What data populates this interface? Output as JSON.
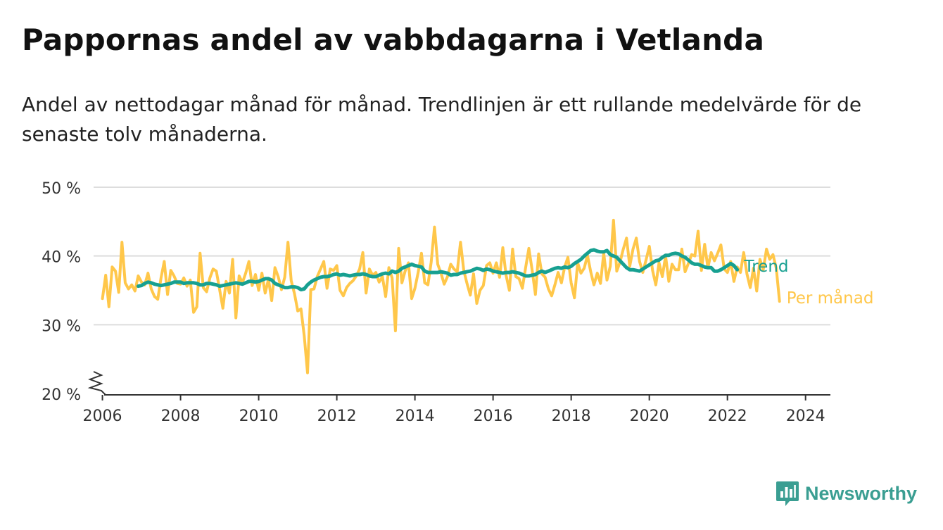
{
  "header": {
    "title": "Pappornas andel av vabbdagarna i Vetlanda",
    "subtitle": "Andel av nettodagar månad för månad. Trendlinjen är ett rullande medelvärde för de senaste tolv månaderna."
  },
  "brand": {
    "name": "Newsworthy",
    "icon": "newsworthy-chart-bubble-icon"
  },
  "colors": {
    "trend": "#17a091",
    "monthly": "#ffc74a",
    "grid": "#dddddd",
    "axis": "#333333",
    "brand": "#3a9e92"
  },
  "chart_data": {
    "type": "line",
    "title": "Pappornas andel av vabbdagarna i Vetlanda",
    "subtitle": "Andel av nettodagar månad för månad. Trendlinjen är ett rullande medelvärde för de senaste tolv månaderna.",
    "xlabel": "",
    "ylabel": "",
    "ylim": [
      20,
      50
    ],
    "yticks": [
      20,
      30,
      40,
      50
    ],
    "ytick_labels": [
      "20 %",
      "30 %",
      "40 %",
      "50 %"
    ],
    "y_axis_break": true,
    "xlim": [
      2005.9,
      2024.6
    ],
    "xticks": [
      2006,
      2008,
      2010,
      2012,
      2014,
      2016,
      2018,
      2020,
      2022,
      2024
    ],
    "xtick_labels": [
      "2006",
      "2008",
      "2010",
      "2012",
      "2014",
      "2016",
      "2018",
      "2020",
      "2022",
      "2024"
    ],
    "grid": "horizontal",
    "legend": "direct labels at line ends (right)",
    "series": [
      {
        "name": "Per månad",
        "color": "#ffc74a",
        "x_start": 2006.0,
        "x_step": 0.0833333,
        "values": [
          33.8,
          37.2,
          32.6,
          38.4,
          37.8,
          34.7,
          42.0,
          36.1,
          35.2,
          35.8,
          34.9,
          37.1,
          36.2,
          35.8,
          37.5,
          35.2,
          34.1,
          33.7,
          36.8,
          39.2,
          34.4,
          37.9,
          37.1,
          36.0,
          35.9,
          36.8,
          35.6,
          36.5,
          31.8,
          32.6,
          40.4,
          35.4,
          34.8,
          36.8,
          38.1,
          37.8,
          35.1,
          32.4,
          36.3,
          34.6,
          39.5,
          31.0,
          37.1,
          36.1,
          37.5,
          39.2,
          35.7,
          37.3,
          35.0,
          37.5,
          34.6,
          36.6,
          33.5,
          38.3,
          37.0,
          35.1,
          36.9,
          42.0,
          36.4,
          34.5,
          32.0,
          32.3,
          28.4,
          23.0,
          35.1,
          35.2,
          37.0,
          38.1,
          39.2,
          35.3,
          38.1,
          37.9,
          38.6,
          35.0,
          34.2,
          35.4,
          36.0,
          36.4,
          37.1,
          38.1,
          40.5,
          34.6,
          38.1,
          37.2,
          37.6,
          36.2,
          37.0,
          34.1,
          38.3,
          36.8,
          29.1,
          41.1,
          36.1,
          37.8,
          39.0,
          33.8,
          35.3,
          37.6,
          40.4,
          36.1,
          35.8,
          39.1,
          44.2,
          38.8,
          37.5,
          35.9,
          37.0,
          38.8,
          38.1,
          37.7,
          42.0,
          37.9,
          36.0,
          34.3,
          37.4,
          33.1,
          35.0,
          35.7,
          38.6,
          39.0,
          37.5,
          39.0,
          36.9,
          41.2,
          37.2,
          35.0,
          41.0,
          37.0,
          36.7,
          35.3,
          38.3,
          41.1,
          38.0,
          34.4,
          40.3,
          37.4,
          36.9,
          35.2,
          34.2,
          35.8,
          37.6,
          36.1,
          38.4,
          39.8,
          36.1,
          33.9,
          39.0,
          37.5,
          38.2,
          40.1,
          37.7,
          35.8,
          37.5,
          36.0,
          40.4,
          36.5,
          38.5,
          45.2,
          37.8,
          39.1,
          41.0,
          42.6,
          38.5,
          41.0,
          42.6,
          39.2,
          37.6,
          39.4,
          41.4,
          37.9,
          35.8,
          39.0,
          37.0,
          40.0,
          36.3,
          38.8,
          38.0,
          38.0,
          41.0,
          37.7,
          38.9,
          40.2,
          40.0,
          43.6,
          37.9,
          41.7,
          38.3,
          40.5,
          39.3,
          40.4,
          41.6,
          38.1,
          37.6,
          39.2,
          36.3,
          38.4,
          37.6,
          40.5,
          37.4,
          35.4,
          38.2,
          34.9,
          39.5,
          38.0,
          41.0,
          39.5,
          40.2,
          38.2,
          33.4
        ]
      },
      {
        "name": "Trend",
        "color": "#17a091",
        "x_start": 2006.9167,
        "x_step": 0.0833333,
        "values": [
          35.6,
          35.7,
          36.0,
          36.2,
          36.1,
          35.9,
          35.8,
          35.7,
          35.8,
          35.9,
          36.0,
          36.2,
          36.2,
          36.2,
          36.0,
          36.1,
          36.1,
          36.1,
          36.0,
          35.8,
          35.8,
          36.0,
          36.0,
          35.9,
          35.8,
          35.6,
          35.7,
          35.8,
          35.9,
          36.0,
          36.1,
          36.0,
          35.9,
          36.1,
          36.3,
          36.3,
          36.2,
          36.3,
          36.5,
          36.7,
          36.7,
          36.5,
          36.0,
          35.8,
          35.6,
          35.4,
          35.4,
          35.5,
          35.5,
          35.4,
          35.1,
          35.2,
          35.8,
          36.2,
          36.5,
          36.7,
          36.9,
          37.0,
          37.0,
          37.1,
          37.3,
          37.4,
          37.2,
          37.3,
          37.2,
          37.1,
          37.2,
          37.3,
          37.3,
          37.4,
          37.3,
          37.1,
          37.0,
          37.0,
          37.2,
          37.4,
          37.5,
          37.4,
          37.8,
          37.6,
          37.8,
          38.2,
          38.4,
          38.6,
          38.8,
          38.6,
          38.5,
          38.4,
          37.8,
          37.6,
          37.6,
          37.6,
          37.6,
          37.7,
          37.6,
          37.5,
          37.2,
          37.3,
          37.3,
          37.5,
          37.6,
          37.7,
          37.8,
          38.0,
          38.2,
          38.1,
          37.9,
          38.1,
          38.0,
          37.8,
          37.7,
          37.6,
          37.5,
          37.6,
          37.6,
          37.7,
          37.6,
          37.5,
          37.3,
          37.1,
          37.1,
          37.2,
          37.3,
          37.6,
          37.8,
          37.6,
          37.8,
          38.0,
          38.2,
          38.3,
          38.2,
          38.4,
          38.3,
          38.5,
          38.9,
          39.2,
          39.5,
          40.0,
          40.4,
          40.8,
          40.9,
          40.7,
          40.6,
          40.6,
          40.8,
          40.2,
          40.0,
          39.8,
          39.3,
          38.8,
          38.3,
          38.0,
          38.0,
          37.9,
          37.8,
          38.1,
          38.4,
          38.7,
          39.0,
          39.3,
          39.4,
          39.8,
          40.1,
          40.1,
          40.3,
          40.4,
          40.3,
          40.0,
          39.8,
          39.4,
          39.0,
          38.8,
          38.8,
          38.6,
          38.4,
          38.3,
          38.3,
          37.8,
          37.8,
          38.0,
          38.3,
          38.6,
          38.9,
          38.6,
          38.0
        ]
      }
    ]
  }
}
